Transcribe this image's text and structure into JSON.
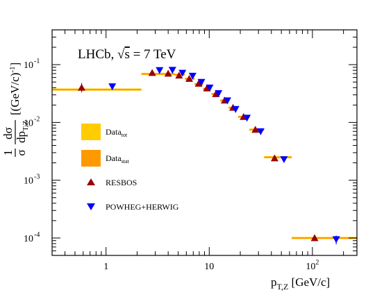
{
  "chart_data": {
    "type": "scatter",
    "annotation": "LHCb, √s = 7 TeV",
    "annotation_prefix": "LHCb, ",
    "annotation_sqrt": "√",
    "annotation_s": "s",
    "annotation_rest": " = 7 TeV",
    "xlabel_main": "p",
    "xlabel_sub": "T,Z",
    "xlabel_unit": " [GeV/c]",
    "ylabel_unit": "[(GeV/c)",
    "ylabel_unit_exp": "-1",
    "ylabel_unit_close": "]",
    "ylabel_frac_num": "1",
    "ylabel_frac_den": "σ",
    "ylabel_dsig_num": "dσ",
    "ylabel_dsig_den_main": "dp",
    "ylabel_dsig_den_sub": "T,Z",
    "xscale": "log",
    "yscale": "log",
    "xlim": [
      0.3,
      270
    ],
    "ylim": [
      5e-05,
      0.4
    ],
    "x_ticks": [
      {
        "value": 1,
        "label": "1"
      },
      {
        "value": 10,
        "label": "10"
      },
      {
        "value": 100,
        "label": "10",
        "exp": "2"
      }
    ],
    "y_ticks": [
      {
        "value": 0.0001,
        "base": "10",
        "exp": "-4"
      },
      {
        "value": 0.001,
        "base": "10",
        "exp": "-3"
      },
      {
        "value": 0.01,
        "base": "10",
        "exp": "-2"
      },
      {
        "value": 0.1,
        "base": "10",
        "exp": "-1"
      }
    ],
    "legend": [
      {
        "key": "tot",
        "main": "Data",
        "sub": "tot",
        "symbol": "box",
        "color": "#FFCC00"
      },
      {
        "key": "stat",
        "main": "Data",
        "sub": "stat",
        "symbol": "box",
        "color": "#FF9900"
      },
      {
        "key": "resbos",
        "main": "RESBOS",
        "sub": "",
        "symbol": "triangle-up",
        "color": "#990000"
      },
      {
        "key": "powheg",
        "main": "POWHEG+HERWIG",
        "sub": "",
        "symbol": "triangle-down",
        "color": "#0000FF"
      }
    ],
    "colors": {
      "data_tot": "#FFCC00",
      "data_stat": "#FF9900",
      "resbos": "#990000",
      "powheg": "#0000FF"
    },
    "data_bins": [
      {
        "x_low": 0.3,
        "x_high": 2.2,
        "y": 0.037
      },
      {
        "x_low": 2.2,
        "x_high": 3.4,
        "y": 0.069
      },
      {
        "x_low": 3.4,
        "x_high": 4.6,
        "y": 0.069
      },
      {
        "x_low": 4.6,
        "x_high": 5.8,
        "y": 0.067
      },
      {
        "x_low": 5.8,
        "x_high": 7.2,
        "y": 0.057
      },
      {
        "x_low": 7.2,
        "x_high": 8.7,
        "y": 0.046
      },
      {
        "x_low": 8.7,
        "x_high": 10.5,
        "y": 0.038
      },
      {
        "x_low": 10.5,
        "x_high": 12.8,
        "y": 0.031
      },
      {
        "x_low": 12.8,
        "x_high": 15.4,
        "y": 0.024
      },
      {
        "x_low": 15.4,
        "x_high": 19.0,
        "y": 0.018
      },
      {
        "x_low": 19.0,
        "x_high": 24.5,
        "y": 0.0125
      },
      {
        "x_low": 24.5,
        "x_high": 34.0,
        "y": 0.0075
      },
      {
        "x_low": 34.0,
        "x_high": 63.0,
        "y": 0.0025
      },
      {
        "x_low": 63.0,
        "x_high": 270,
        "y": 0.0001
      }
    ],
    "series": [
      {
        "name": "RESBOS",
        "points": [
          {
            "x": 0.58,
            "y": 0.04,
            "yerr_lo": 0.033,
            "yerr_hi": 0.048
          },
          {
            "x": 2.8,
            "y": 0.072
          },
          {
            "x": 4.0,
            "y": 0.07
          },
          {
            "x": 5.1,
            "y": 0.065
          },
          {
            "x": 6.4,
            "y": 0.057
          },
          {
            "x": 7.9,
            "y": 0.047
          },
          {
            "x": 9.5,
            "y": 0.039
          },
          {
            "x": 11.6,
            "y": 0.031
          },
          {
            "x": 14.1,
            "y": 0.024
          },
          {
            "x": 17.0,
            "y": 0.018
          },
          {
            "x": 21.5,
            "y": 0.0125
          },
          {
            "x": 28.0,
            "y": 0.0075
          },
          {
            "x": 43.0,
            "y": 0.0024
          },
          {
            "x": 105,
            "y": 0.0001
          }
        ]
      },
      {
        "name": "POWHEG+HERWIG",
        "points": [
          {
            "x": 1.15,
            "y": 0.042
          },
          {
            "x": 3.3,
            "y": 0.08
          },
          {
            "x": 4.4,
            "y": 0.081
          },
          {
            "x": 5.5,
            "y": 0.072
          },
          {
            "x": 6.9,
            "y": 0.064
          },
          {
            "x": 8.4,
            "y": 0.05
          },
          {
            "x": 10.1,
            "y": 0.04
          },
          {
            "x": 12.3,
            "y": 0.032
          },
          {
            "x": 15.0,
            "y": 0.024
          },
          {
            "x": 18.0,
            "y": 0.017
          },
          {
            "x": 23.2,
            "y": 0.012
          },
          {
            "x": 31.5,
            "y": 0.007
          },
          {
            "x": 53.0,
            "y": 0.0023
          },
          {
            "x": 170,
            "y": 9.5e-05,
            "yerr_lo": 7.8e-05,
            "yerr_hi": 0.00011
          }
        ]
      }
    ]
  }
}
